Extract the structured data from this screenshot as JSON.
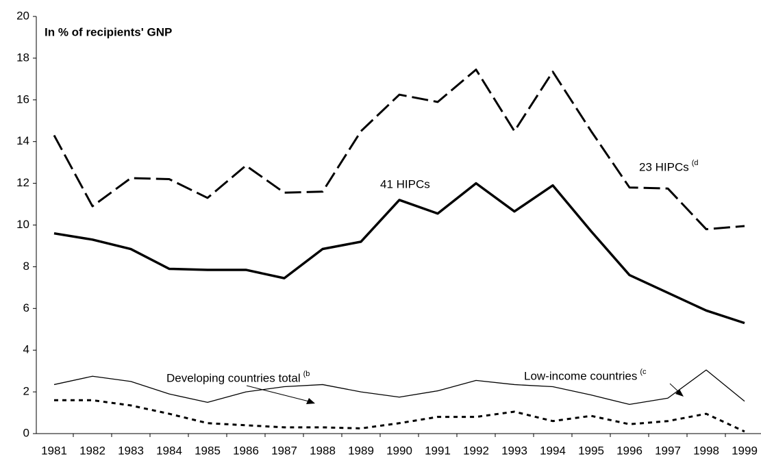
{
  "chart_data": {
    "type": "line",
    "title": "In % of recipients' GNP",
    "categories": [
      "1981",
      "1982",
      "1983",
      "1984",
      "1985",
      "1986",
      "1987",
      "1988",
      "1989",
      "1990",
      "1991",
      "1992",
      "1993",
      "1994",
      "1995",
      "1996",
      "1997",
      "1998",
      "1999"
    ],
    "series": [
      {
        "name": "23 HIPCs",
        "note": "(d",
        "color": "#000000",
        "style": "dashed",
        "values": [
          14.3,
          10.9,
          12.25,
          12.2,
          11.3,
          12.85,
          11.55,
          11.6,
          14.5,
          16.25,
          15.9,
          17.45,
          14.5,
          17.35,
          14.5,
          11.8,
          11.75,
          9.8,
          9.95
        ]
      },
      {
        "name": "41 HIPCs",
        "color": "#000000",
        "style": "thick",
        "values": [
          9.6,
          9.3,
          8.85,
          7.9,
          7.85,
          7.85,
          7.45,
          8.85,
          9.2,
          11.2,
          10.55,
          12.0,
          10.65,
          11.9,
          9.7,
          7.6,
          6.75,
          5.9,
          5.3
        ]
      },
      {
        "name": "Low-income countries",
        "note": "(c",
        "color": "#000000",
        "style": "thin",
        "values": [
          2.35,
          2.75,
          2.5,
          1.9,
          1.5,
          2.0,
          2.25,
          2.35,
          2.0,
          1.75,
          2.05,
          2.55,
          2.35,
          2.25,
          1.85,
          1.4,
          1.7,
          3.05,
          1.55
        ]
      },
      {
        "name": "Developing countries total",
        "note": "(b",
        "color": "#000000",
        "style": "dotted",
        "values": [
          1.6,
          1.6,
          1.35,
          0.95,
          0.5,
          0.4,
          0.3,
          0.3,
          0.25,
          0.5,
          0.8,
          0.8,
          1.05,
          0.6,
          0.85,
          0.45,
          0.6,
          0.95,
          0.1
        ]
      }
    ],
    "ylim": [
      0,
      20
    ],
    "yticks": [
      0,
      2,
      4,
      6,
      8,
      10,
      12,
      14,
      16,
      18,
      20
    ],
    "grid": false
  }
}
